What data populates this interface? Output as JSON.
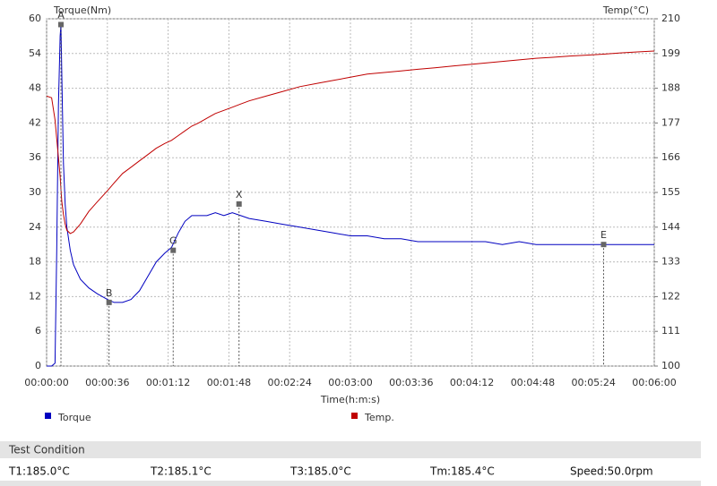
{
  "chart_data": {
    "type": "line",
    "y_label": "Torque(Nm)",
    "y2_label": "Temp(°C)",
    "x_label": "Time(h:m:s)",
    "x": [
      0,
      3,
      5,
      6,
      7,
      8,
      8.5,
      9,
      10,
      11,
      12,
      14,
      16,
      20,
      25,
      30,
      36,
      40,
      45,
      50,
      55,
      60,
      65,
      70,
      74,
      78,
      82,
      86,
      90,
      95,
      100,
      105,
      110,
      115,
      120,
      130,
      140,
      150,
      160,
      170,
      180,
      190,
      200,
      210,
      220,
      230,
      240,
      250,
      260,
      270,
      280,
      290,
      300,
      310,
      320,
      330,
      340,
      350,
      360
    ],
    "series": [
      {
        "name": "Torque",
        "color": "#0000c0",
        "values": [
          0,
          0,
          0.5,
          20,
          45,
          57,
          59,
          50,
          35,
          28,
          24,
          20,
          17.5,
          15,
          13.5,
          12.5,
          11.5,
          11,
          11,
          11.5,
          13,
          15.5,
          18,
          19.5,
          20.5,
          23,
          25,
          26,
          26,
          26,
          26.5,
          26,
          26.5,
          26,
          25.5,
          25,
          24.5,
          24,
          23.5,
          23,
          22.5,
          22.5,
          22,
          22,
          21.5,
          21.5,
          21.5,
          21.5,
          21.5,
          21,
          21.5,
          21,
          21,
          21,
          21,
          21,
          21,
          21,
          21
        ]
      },
      {
        "name": "Temp.",
        "color": "#c00000",
        "axis": "y2",
        "values": [
          185.5,
          185,
          178,
          172,
          166,
          160,
          156,
          152,
          148,
          145,
          143,
          142,
          142.5,
          145,
          149,
          152,
          155.5,
          158,
          161,
          163,
          165,
          167,
          169,
          170.5,
          171.5,
          173,
          174.5,
          176,
          177,
          178.5,
          180,
          181,
          182,
          183,
          184,
          185.5,
          187,
          188.5,
          189.5,
          190.5,
          191.5,
          192.5,
          193,
          193.5,
          194,
          194.5,
          195,
          195.5,
          196,
          196.5,
          197,
          197.5,
          197.8,
          198.2,
          198.5,
          198.8,
          199.2,
          199.5,
          199.8
        ]
      }
    ],
    "markers": [
      {
        "label": "A",
        "x": 8.5,
        "y": 59
      },
      {
        "label": "B",
        "x": 37,
        "y": 11
      },
      {
        "label": "G",
        "x": 75,
        "y": 20
      },
      {
        "label": "X",
        "x": 114,
        "y": 28
      },
      {
        "label": "E",
        "x": 330,
        "y": 21
      }
    ],
    "xlim": [
      0,
      360
    ],
    "xticks": [
      {
        "value": 0,
        "label": "00:00:00"
      },
      {
        "value": 36,
        "label": "00:00:36"
      },
      {
        "value": 72,
        "label": "00:01:12"
      },
      {
        "value": 108,
        "label": "00:01:48"
      },
      {
        "value": 144,
        "label": "00:02:24"
      },
      {
        "value": 180,
        "label": "00:03:00"
      },
      {
        "value": 216,
        "label": "00:03:36"
      },
      {
        "value": 252,
        "label": "00:04:12"
      },
      {
        "value": 288,
        "label": "00:04:48"
      },
      {
        "value": 324,
        "label": "00:05:24"
      },
      {
        "value": 360,
        "label": "00:06:00"
      }
    ],
    "ylim": [
      0,
      60
    ],
    "yticks": [
      0,
      6,
      12,
      18,
      24,
      30,
      36,
      42,
      48,
      54,
      60
    ],
    "y2lim": [
      100,
      210
    ],
    "y2ticks": [
      100,
      111,
      122,
      133,
      144,
      155,
      166,
      177,
      188,
      199,
      210
    ],
    "grid": true
  },
  "test_condition": {
    "title": "Test Condition",
    "items": [
      "T1:185.0°C",
      "T2:185.1°C",
      "T3:185.0°C",
      "Tm:185.4°C",
      "Speed:50.0rpm"
    ]
  }
}
